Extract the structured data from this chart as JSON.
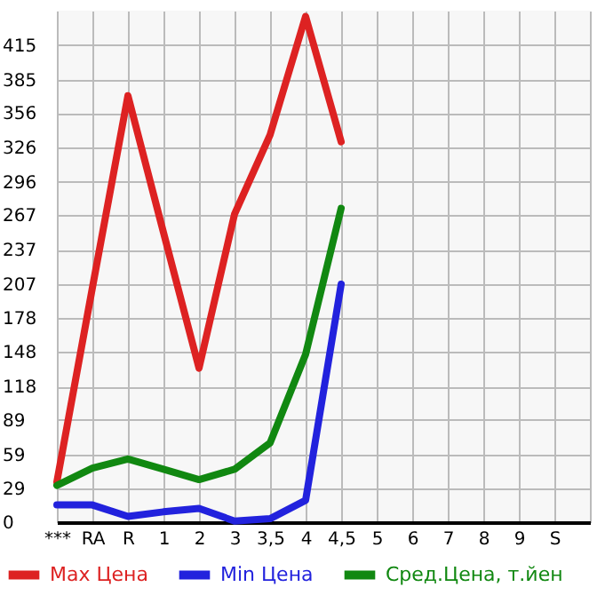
{
  "chart_data": {
    "type": "line",
    "categories": [
      "***",
      "RA",
      "R",
      "1",
      "2",
      "3",
      "3,5",
      "4",
      "4,5",
      "5",
      "6",
      "7",
      "8",
      "9",
      "S",
      null
    ],
    "series": [
      {
        "name": "Max Цена",
        "color": "#dd2222",
        "values": [
          35,
          204,
          371,
          252,
          134,
          268,
          337,
          440,
          331,
          null,
          null,
          null,
          null,
          null,
          null,
          null
        ]
      },
      {
        "name": "Min Цена",
        "color": "#2222dd",
        "values": [
          15,
          15,
          5,
          9,
          12,
          1,
          3,
          19,
          207,
          null,
          null,
          null,
          null,
          null,
          null,
          null
        ]
      },
      {
        "name": "Сред.Цена, т.йен",
        "color": "#118811",
        "values": [
          32,
          47,
          55,
          46,
          37,
          46,
          69,
          146,
          273,
          null,
          null,
          null,
          null,
          null,
          null,
          null
        ]
      }
    ],
    "ylim": [
      0,
      445
    ],
    "yticks": [
      0,
      29,
      59,
      89,
      118,
      148,
      178,
      207,
      237,
      267,
      296,
      326,
      356,
      385,
      415
    ],
    "grid": true,
    "legend": "bottom",
    "marker": "none",
    "line_style": "solid"
  }
}
